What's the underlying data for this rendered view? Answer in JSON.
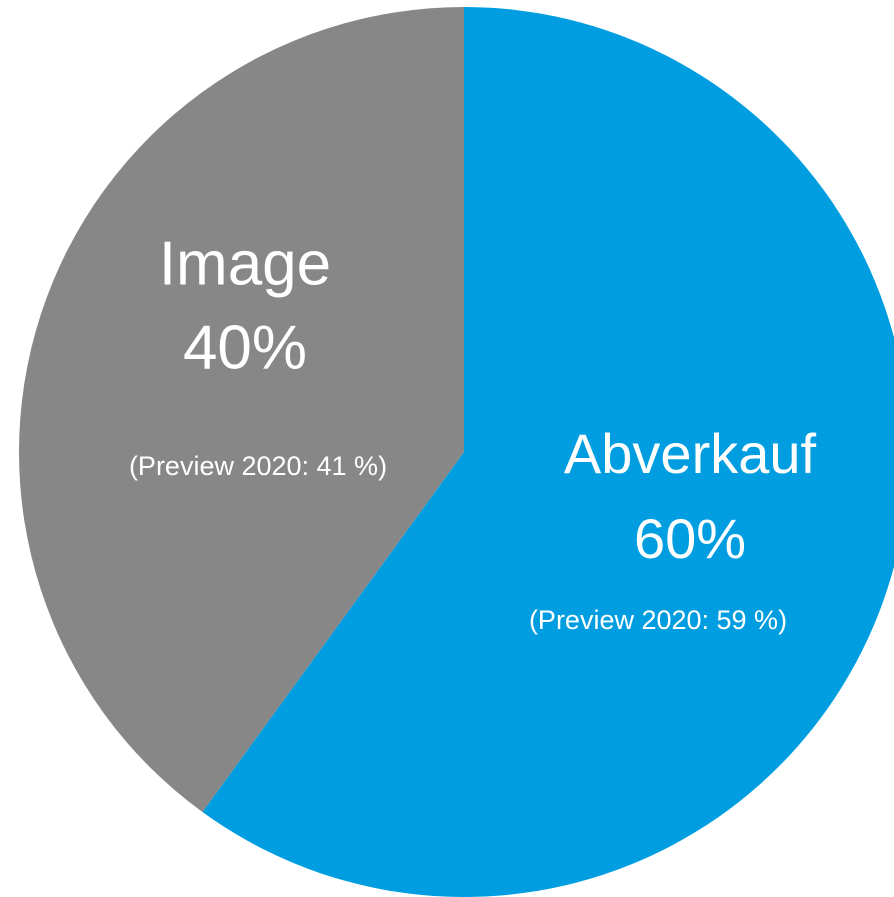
{
  "chart_data": {
    "type": "pie",
    "categories": [
      "Abverkauf",
      "Image"
    ],
    "values": [
      60,
      40
    ],
    "value_labels": [
      "60%",
      "40%"
    ],
    "annotations": [
      "(Preview 2020: 59 %)",
      "(Preview 2020: 41 %)"
    ],
    "colors": [
      "#009ee0",
      "#878787"
    ],
    "start_angle": 0,
    "direction": "clockwise"
  }
}
